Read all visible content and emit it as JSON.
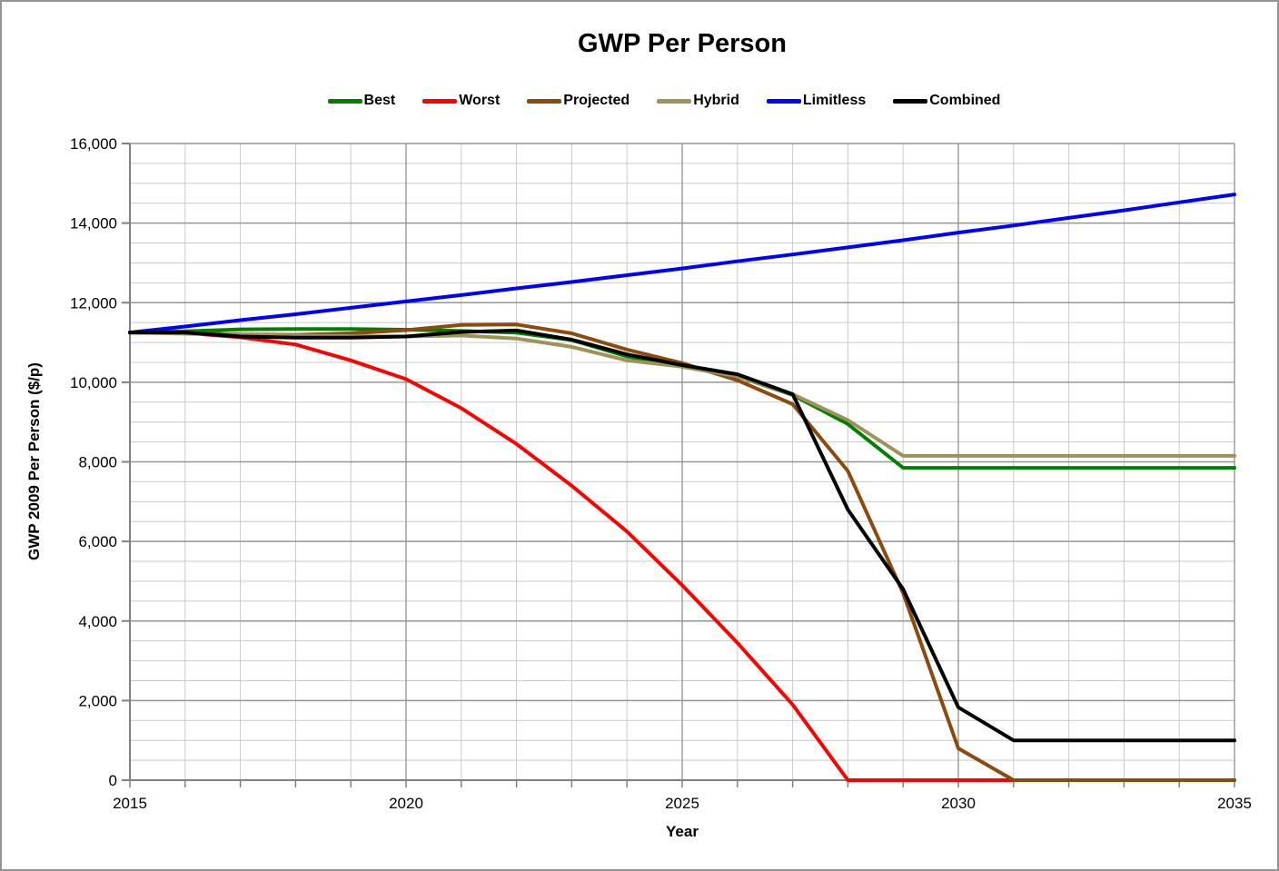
{
  "chart_data": {
    "type": "line",
    "title": "GWP Per Person",
    "xlabel": "Year",
    "ylabel": "GWP 2009 Per Person ($/p)",
    "xlim": [
      2015,
      2035
    ],
    "ylim": [
      0,
      16000
    ],
    "grid": true,
    "legend_position": "top",
    "x_minor_step": 1,
    "y_minor_step": 500,
    "x_major_ticks": [
      2015,
      2020,
      2025,
      2030,
      2035
    ],
    "x_tick_labels": [
      "2015",
      "2020",
      "2025",
      "2030",
      "2035"
    ],
    "y_major_ticks": [
      0,
      2000,
      4000,
      6000,
      8000,
      10000,
      12000,
      14000,
      16000
    ],
    "y_tick_labels": [
      "0",
      "2,000",
      "4,000",
      "6,000",
      "8,000",
      "10,000",
      "12,000",
      "14,000",
      "16,000"
    ],
    "x": [
      2015,
      2016,
      2017,
      2018,
      2019,
      2020,
      2021,
      2022,
      2023,
      2024,
      2025,
      2026,
      2027,
      2028,
      2029,
      2030,
      2031,
      2032,
      2033,
      2034,
      2035
    ],
    "series": [
      {
        "name": "Best",
        "color": "#008000",
        "values": [
          11250,
          11280,
          11330,
          11340,
          11340,
          11320,
          11290,
          11245,
          11060,
          10650,
          10390,
          10150,
          9680,
          8950,
          7850,
          7850,
          7850,
          7850,
          7850,
          7850,
          7850
        ]
      },
      {
        "name": "Worst",
        "color": "#FF0000",
        "values": [
          11250,
          11240,
          11130,
          10950,
          10550,
          10080,
          9350,
          8450,
          7400,
          6250,
          4900,
          3450,
          1900,
          0,
          0,
          0,
          0,
          0,
          0,
          0,
          0
        ]
      },
      {
        "name": "Projected",
        "color": "#8C4A0F",
        "values": [
          11250,
          11250,
          11200,
          11190,
          11230,
          11310,
          11440,
          11450,
          11230,
          10820,
          10480,
          10050,
          9450,
          7770,
          4700,
          800,
          0,
          0,
          0,
          0,
          0
        ]
      },
      {
        "name": "Hybrid",
        "color": "#9E9258",
        "values": [
          11250,
          11220,
          11190,
          11175,
          11160,
          11150,
          11175,
          11100,
          10890,
          10550,
          10390,
          10150,
          9700,
          9050,
          8150,
          8150,
          8150,
          8150,
          8150,
          8150,
          8150
        ]
      },
      {
        "name": "Limitless",
        "color": "#0000FF",
        "values": [
          11250,
          11400,
          11560,
          11710,
          11870,
          12030,
          12190,
          12360,
          12520,
          12690,
          12860,
          13040,
          13210,
          13390,
          13570,
          13760,
          13940,
          14130,
          14320,
          14520,
          14720
        ]
      },
      {
        "name": "Combined",
        "color": "#000000",
        "values": [
          11250,
          11250,
          11150,
          11120,
          11120,
          11150,
          11265,
          11300,
          11070,
          10700,
          10430,
          10200,
          9700,
          6800,
          4800,
          1830,
          1000,
          1000,
          1000,
          1000,
          1000
        ]
      }
    ]
  },
  "colors": {
    "grid_minor": "#C9C9C9",
    "grid_major": "#969696",
    "axis": "#808080",
    "frame": "#949494",
    "text": "#000000"
  }
}
